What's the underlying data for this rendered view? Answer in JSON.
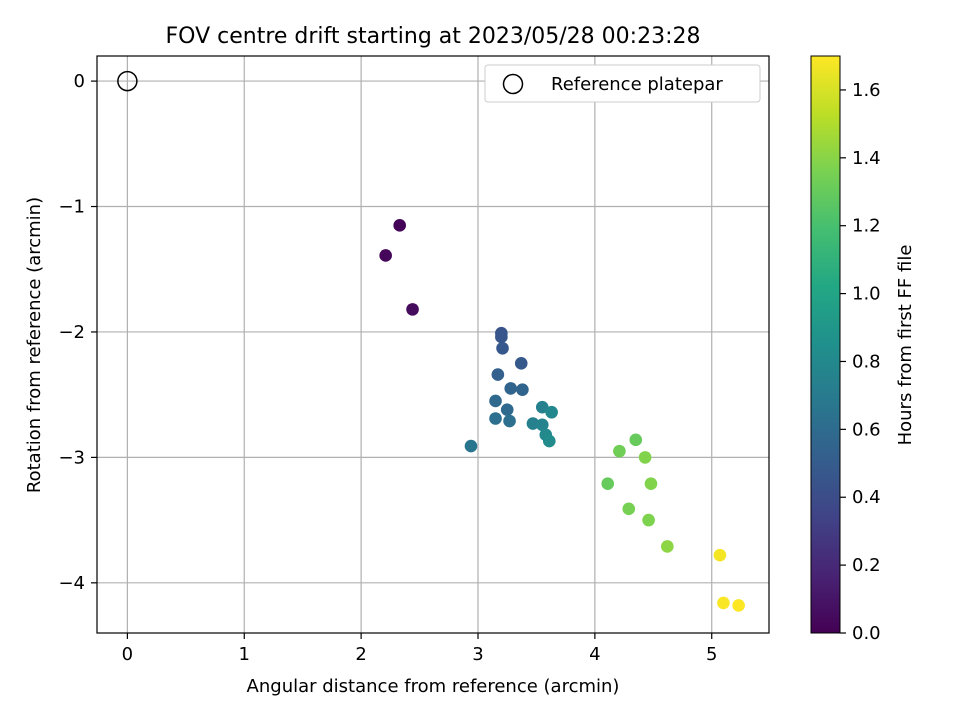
{
  "chart_data": {
    "type": "scatter",
    "title": "FOV centre drift starting at 2023/05/28 00:23:28",
    "xlabel": "Angular distance from reference (arcmin)",
    "ylabel": "Rotation from reference (arcmin)",
    "xlim": [
      -0.26,
      5.49
    ],
    "ylim": [
      -4.4,
      0.2
    ],
    "xticks": [
      0,
      1,
      2,
      3,
      4,
      5
    ],
    "yticks": [
      0,
      -1,
      -2,
      -3,
      -4
    ],
    "grid": true,
    "legend": {
      "placement": "top-right",
      "entries": [
        "Reference platepar"
      ]
    },
    "reference_point": {
      "x": 0,
      "y": 0,
      "marker": "open-circle"
    },
    "colorbar": {
      "label": "Hours from first FF file",
      "colormap": "viridis",
      "range": [
        0.0,
        1.7
      ],
      "ticks": [
        "0.0",
        "0.2",
        "0.4",
        "0.6",
        "0.8",
        "1.0",
        "1.2",
        "1.4",
        "1.6"
      ]
    },
    "points": [
      {
        "x": 2.33,
        "y": -1.15,
        "c": 0.02
      },
      {
        "x": 2.21,
        "y": -1.39,
        "c": 0.03
      },
      {
        "x": 2.44,
        "y": -1.82,
        "c": 0.05
      },
      {
        "x": 3.2,
        "y": -2.01,
        "c": 0.45
      },
      {
        "x": 3.2,
        "y": -2.04,
        "c": 0.46
      },
      {
        "x": 3.21,
        "y": -2.13,
        "c": 0.47
      },
      {
        "x": 3.37,
        "y": -2.25,
        "c": 0.48
      },
      {
        "x": 3.17,
        "y": -2.34,
        "c": 0.52
      },
      {
        "x": 3.28,
        "y": -2.45,
        "c": 0.55
      },
      {
        "x": 3.38,
        "y": -2.46,
        "c": 0.55
      },
      {
        "x": 3.15,
        "y": -2.55,
        "c": 0.58
      },
      {
        "x": 3.25,
        "y": -2.62,
        "c": 0.58
      },
      {
        "x": 3.15,
        "y": -2.69,
        "c": 0.62
      },
      {
        "x": 3.27,
        "y": -2.71,
        "c": 0.62
      },
      {
        "x": 2.94,
        "y": -2.91,
        "c": 0.66
      },
      {
        "x": 3.55,
        "y": -2.6,
        "c": 0.74
      },
      {
        "x": 3.63,
        "y": -2.64,
        "c": 0.79
      },
      {
        "x": 3.47,
        "y": -2.73,
        "c": 0.74
      },
      {
        "x": 3.55,
        "y": -2.74,
        "c": 0.76
      },
      {
        "x": 3.58,
        "y": -2.82,
        "c": 0.8
      },
      {
        "x": 3.61,
        "y": -2.87,
        "c": 0.82
      },
      {
        "x": 4.35,
        "y": -2.86,
        "c": 1.3
      },
      {
        "x": 4.21,
        "y": -2.95,
        "c": 1.33
      },
      {
        "x": 4.43,
        "y": -3.0,
        "c": 1.38
      },
      {
        "x": 4.11,
        "y": -3.21,
        "c": 1.3
      },
      {
        "x": 4.48,
        "y": -3.21,
        "c": 1.38
      },
      {
        "x": 4.29,
        "y": -3.41,
        "c": 1.35
      },
      {
        "x": 4.46,
        "y": -3.5,
        "c": 1.37
      },
      {
        "x": 4.62,
        "y": -3.71,
        "c": 1.41
      },
      {
        "x": 5.07,
        "y": -3.78,
        "c": 1.68
      },
      {
        "x": 5.1,
        "y": -4.16,
        "c": 1.69
      },
      {
        "x": 5.23,
        "y": -4.18,
        "c": 1.7
      }
    ]
  }
}
